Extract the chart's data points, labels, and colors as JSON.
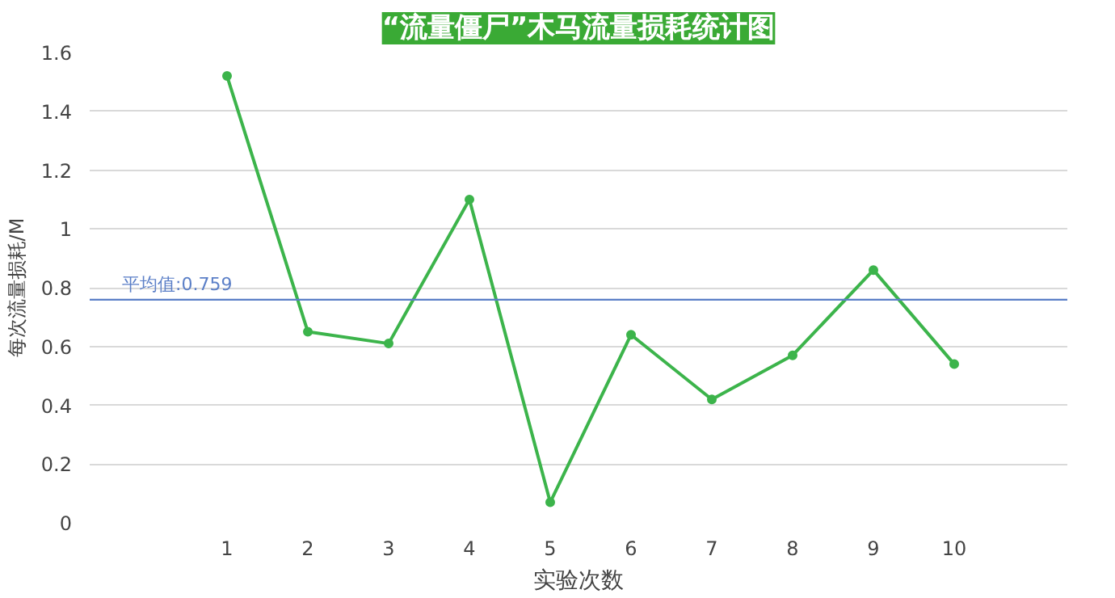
{
  "chart_data": {
    "type": "line",
    "title": "“流量僵尸”木马流量损耗统计图",
    "xlabel": "实验次数",
    "ylabel": "每次流量损耗/M",
    "categories": [
      "1",
      "2",
      "3",
      "4",
      "5",
      "6",
      "7",
      "8",
      "9",
      "10"
    ],
    "series": [
      {
        "color": "#3cb44b",
        "values": [
          1.52,
          0.65,
          0.61,
          1.1,
          0.07,
          0.64,
          0.42,
          0.57,
          0.86,
          0.54
        ]
      }
    ],
    "ylim": [
      0,
      1.6
    ],
    "yticks": [
      0,
      {
        "value": 0.2,
        "label": "0.2"
      },
      {
        "value": 0.4,
        "label": "0.4"
      },
      {
        "value": 0.6,
        "label": "0.6"
      },
      {
        "value": 0.8,
        "label": "0.8"
      },
      1,
      {
        "value": 1.2,
        "label": "1.2"
      },
      {
        "value": 1.4,
        "label": "1.4"
      },
      {
        "value": 1.6,
        "label": "1.6"
      }
    ],
    "ref_lines": [
      {
        "axis": "y",
        "value": 0.759,
        "label": "平均值:0.759",
        "color": "#5b7fc7"
      }
    ],
    "grid": "y",
    "marker": "circle",
    "line_style": "solid"
  }
}
